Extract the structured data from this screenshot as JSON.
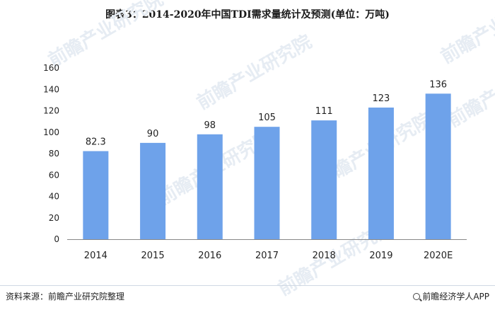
{
  "title": "图表3：2014-2020年中国TDI需求量统计及预测(单位：万吨)",
  "source": "资料来源：前瞻产业研究院整理",
  "credit": "前瞻经济学人APP",
  "watermark": "前瞻产业研究院",
  "colors": {
    "bar": "#6ea2ea",
    "axis": "#888888",
    "text": "#222222"
  },
  "chart_data": {
    "type": "bar",
    "categories": [
      "2014",
      "2015",
      "2016",
      "2017",
      "2018",
      "2019",
      "2020E"
    ],
    "values": [
      82.3,
      90,
      98,
      105,
      111,
      123,
      136
    ],
    "data_labels": [
      "82.3",
      "90",
      "98",
      "105",
      "111",
      "123",
      "136"
    ],
    "ylim": [
      0,
      160
    ],
    "yticks": [
      0,
      20,
      40,
      60,
      80,
      100,
      120,
      140,
      160
    ],
    "grid": false,
    "legend": "none"
  }
}
